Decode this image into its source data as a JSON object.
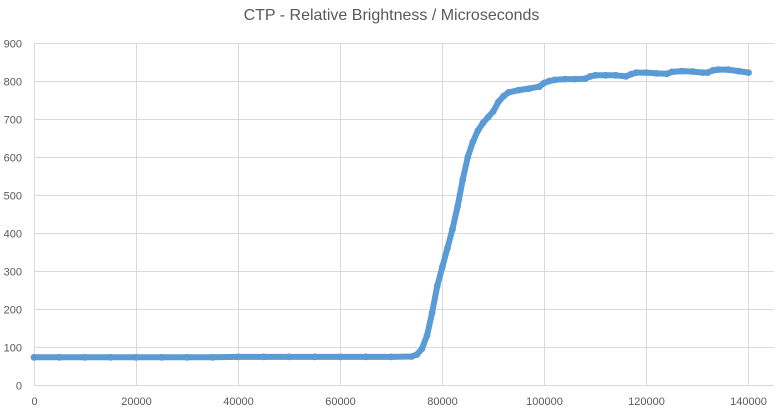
{
  "chart_data": {
    "type": "scatter",
    "title": "CTP - Relative Brightness / Microseconds",
    "xlabel": "",
    "ylabel": "",
    "xlim": [
      0,
      145000
    ],
    "ylim": [
      0,
      900
    ],
    "xticks": [
      0,
      20000,
      40000,
      60000,
      80000,
      100000,
      120000,
      140000
    ],
    "yticks": [
      0,
      100,
      200,
      300,
      400,
      500,
      600,
      700,
      800,
      900
    ],
    "grid": "vertical and horizontal major gridlines",
    "legend": "none",
    "series_color": "#5B9BD5",
    "grid_color": "#D9D9D9",
    "series": [
      {
        "x": [
          0,
          5000,
          10000,
          15000,
          20000,
          25000,
          30000,
          35000,
          40000,
          45000,
          50000,
          55000,
          60000,
          65000,
          70000,
          74000,
          75000,
          76000,
          77000,
          78000,
          79000,
          80000,
          81000,
          82000,
          83000,
          84000,
          85000,
          86000,
          87000,
          88000,
          89000,
          90000,
          91000,
          92000,
          93000,
          95000,
          97000,
          99000,
          100000,
          101000,
          102000,
          104000,
          106000,
          108000,
          109000,
          110000,
          112000,
          114000,
          116000,
          117000,
          118000,
          120000,
          122000,
          124000,
          125000,
          127000,
          129000,
          131000,
          132000,
          133000,
          134000,
          136000,
          138000,
          140000
        ],
        "y": [
          73,
          73,
          73,
          73,
          73,
          73,
          73,
          73,
          74,
          74,
          74,
          74,
          74,
          74,
          74,
          75,
          80,
          95,
          130,
          190,
          260,
          310,
          360,
          410,
          470,
          540,
          600,
          640,
          670,
          690,
          705,
          720,
          745,
          760,
          770,
          776,
          780,
          785,
          795,
          800,
          803,
          805,
          805,
          806,
          812,
          815,
          815,
          815,
          812,
          818,
          822,
          822,
          820,
          819,
          824,
          826,
          825,
          822,
          822,
          828,
          830,
          830,
          826,
          822
        ]
      }
    ]
  }
}
